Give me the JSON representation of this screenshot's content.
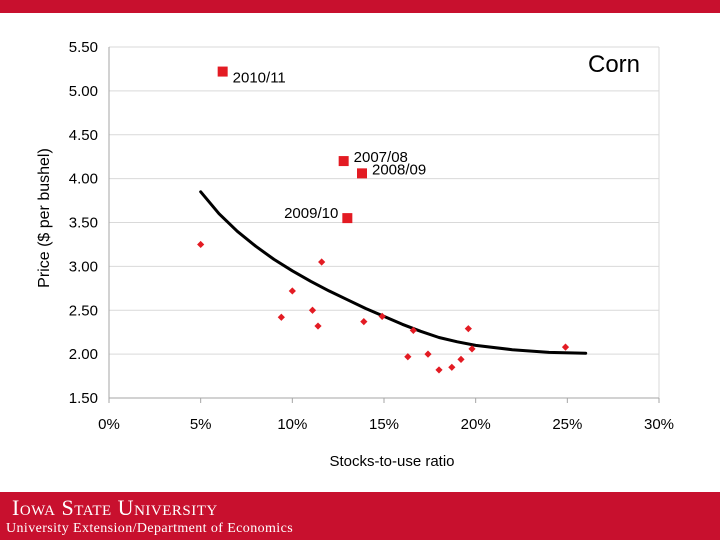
{
  "header": {
    "accent_color": "#c8102e"
  },
  "footer": {
    "university": "Iowa State University",
    "department": "University Extension/Department of Economics",
    "background_color": "#c8102e"
  },
  "chart_data": {
    "type": "scatter",
    "corner_label": "Corn",
    "xlabel": "Stocks-to-use ratio",
    "ylabel": "Price ($ per bushel)",
    "xlim": [
      0,
      30
    ],
    "ylim": [
      1.5,
      5.5
    ],
    "x_ticks": [
      0,
      5,
      10,
      15,
      20,
      25,
      30
    ],
    "x_tick_labels": [
      "0%",
      "5%",
      "10%",
      "15%",
      "20%",
      "25%",
      "30%"
    ],
    "y_ticks": [
      1.5,
      2.0,
      2.5,
      3.0,
      3.5,
      4.0,
      4.5,
      5.0,
      5.5
    ],
    "y_tick_labels": [
      "1.50",
      "2.00",
      "2.50",
      "3.00",
      "3.50",
      "4.00",
      "4.50",
      "5.00",
      "5.50"
    ],
    "grid": true,
    "series": [
      {
        "marker": "diamond",
        "color": "#e31b23",
        "points": [
          {
            "x": 5.0,
            "y": 3.25
          },
          {
            "x": 9.4,
            "y": 2.42
          },
          {
            "x": 10.0,
            "y": 2.72
          },
          {
            "x": 11.1,
            "y": 2.5
          },
          {
            "x": 11.4,
            "y": 2.32
          },
          {
            "x": 11.6,
            "y": 3.05
          },
          {
            "x": 13.9,
            "y": 2.37
          },
          {
            "x": 14.9,
            "y": 2.43
          },
          {
            "x": 16.3,
            "y": 1.97
          },
          {
            "x": 16.6,
            "y": 2.27
          },
          {
            "x": 17.4,
            "y": 2.0
          },
          {
            "x": 18.0,
            "y": 1.82
          },
          {
            "x": 18.7,
            "y": 1.85
          },
          {
            "x": 19.2,
            "y": 1.94
          },
          {
            "x": 19.6,
            "y": 2.29
          },
          {
            "x": 19.8,
            "y": 2.06
          },
          {
            "x": 24.9,
            "y": 2.08
          }
        ]
      },
      {
        "marker": "square",
        "color": "#e31b23",
        "points": [
          {
            "x": 6.2,
            "y": 5.22,
            "label": "2010/11"
          },
          {
            "x": 12.8,
            "y": 4.2,
            "label": "2007/08"
          },
          {
            "x": 13.8,
            "y": 4.06,
            "label": "2008/09"
          },
          {
            "x": 13.0,
            "y": 3.55,
            "label": "2009/10"
          }
        ]
      }
    ],
    "trend_line": {
      "color": "#000000",
      "points": [
        {
          "x": 5.0,
          "y": 3.85
        },
        {
          "x": 6.0,
          "y": 3.6
        },
        {
          "x": 7.0,
          "y": 3.4
        },
        {
          "x": 8.0,
          "y": 3.23
        },
        {
          "x": 9.0,
          "y": 3.08
        },
        {
          "x": 10.0,
          "y": 2.95
        },
        {
          "x": 11.0,
          "y": 2.83
        },
        {
          "x": 12.0,
          "y": 2.72
        },
        {
          "x": 13.0,
          "y": 2.62
        },
        {
          "x": 14.0,
          "y": 2.52
        },
        {
          "x": 15.0,
          "y": 2.43
        },
        {
          "x": 16.0,
          "y": 2.34
        },
        {
          "x": 17.0,
          "y": 2.26
        },
        {
          "x": 18.0,
          "y": 2.19
        },
        {
          "x": 19.0,
          "y": 2.14
        },
        {
          "x": 20.0,
          "y": 2.1
        },
        {
          "x": 22.0,
          "y": 2.05
        },
        {
          "x": 24.0,
          "y": 2.02
        },
        {
          "x": 26.0,
          "y": 2.01
        }
      ]
    }
  }
}
